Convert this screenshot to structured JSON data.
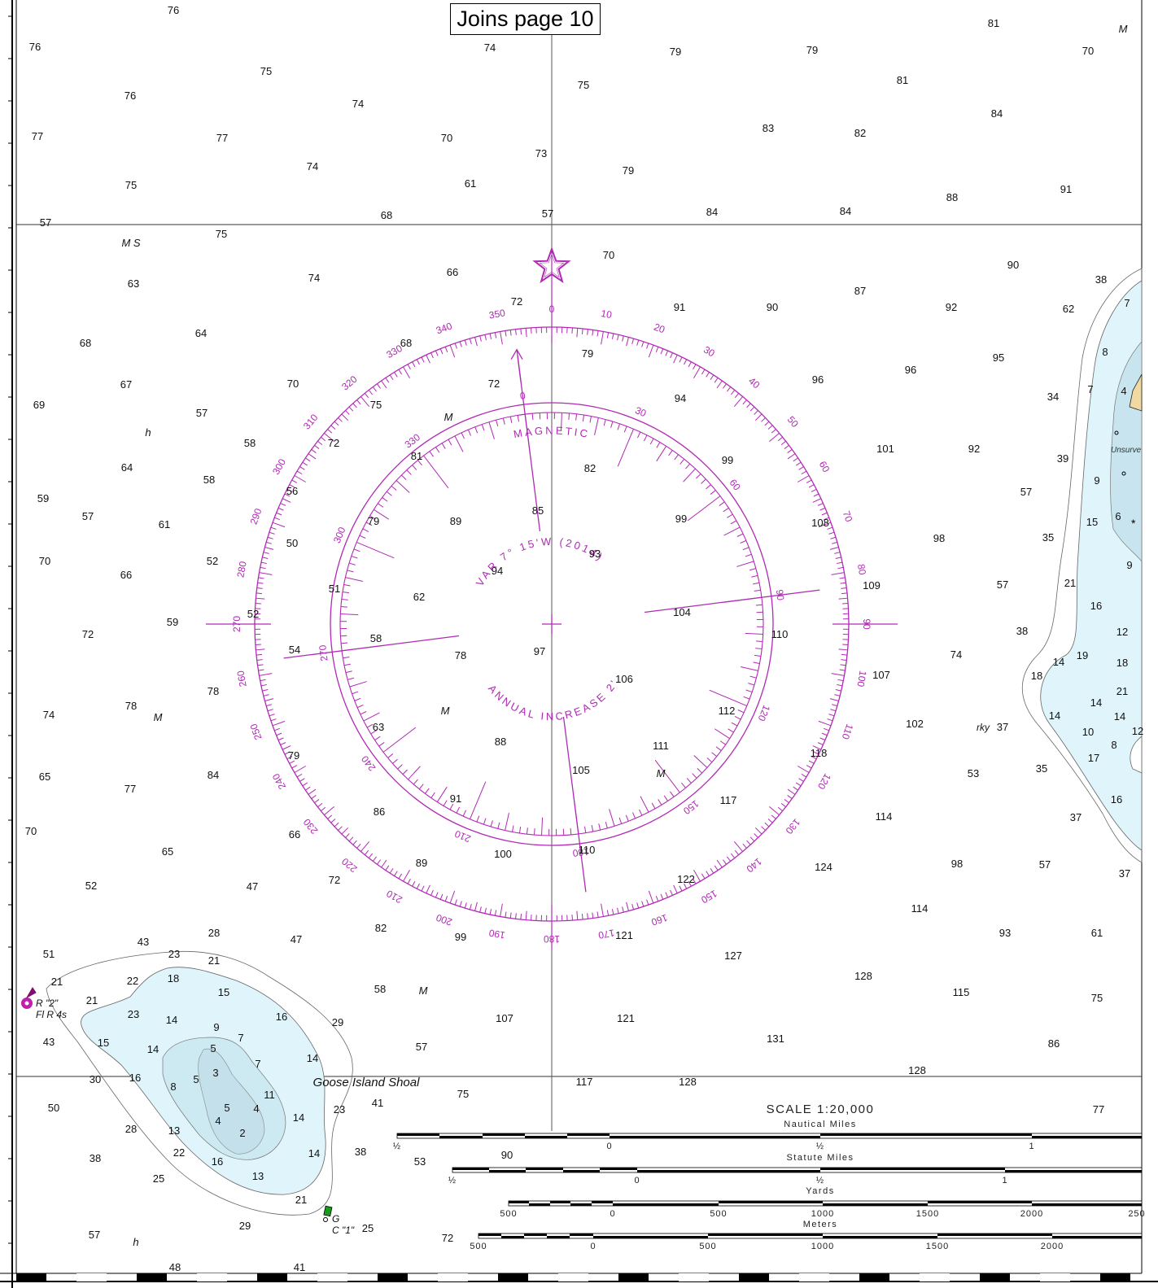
{
  "header": {
    "joins_label": "Joins page 10"
  },
  "chart_info": {
    "shoal_name": "Goose Island Shoal",
    "scale_title": "SCALE  1:20,000",
    "unsurveyed_note": "Unsurve",
    "rocky_note": "rky",
    "buoy_red": {
      "name": "R \"2\"",
      "light": "Fl R 4s"
    },
    "buoy_green": {
      "name": "G",
      "name2": "C \"1\""
    }
  },
  "compass_rose": {
    "variation_text": "VAR 7° 15'W (2014)",
    "annual_text": "ANNUAL INCREASE 2'",
    "magnetic_label": "MAGNETIC",
    "true_labels": [
      "0",
      "10",
      "20",
      "30",
      "40",
      "50",
      "60",
      "70",
      "80",
      "90",
      "100",
      "110",
      "120",
      "130",
      "140",
      "150",
      "160",
      "170",
      "180",
      "190",
      "200",
      "210",
      "220",
      "230",
      "240",
      "250",
      "260",
      "270",
      "280",
      "290",
      "300",
      "310",
      "320",
      "330",
      "340",
      "350"
    ],
    "magnetic_labels": [
      {
        "bearing": "0",
        "true_angle": 352.75
      },
      {
        "bearing": "30",
        "true_angle": 22.75
      },
      {
        "bearing": "60",
        "true_angle": 52.75
      },
      {
        "bearing": "90",
        "true_angle": 82.75
      },
      {
        "bearing": "120",
        "true_angle": 112.75
      },
      {
        "bearing": "150",
        "true_angle": 142.75
      },
      {
        "bearing": "180",
        "true_angle": 172.75
      },
      {
        "bearing": "210",
        "true_angle": 202.75
      },
      {
        "bearing": "240",
        "true_angle": 232.75
      },
      {
        "bearing": "270",
        "true_angle": 262.75
      },
      {
        "bearing": "300",
        "true_angle": 292.75
      },
      {
        "bearing": "330",
        "true_angle": 322.75
      }
    ]
  },
  "scale_bars": {
    "nautical": {
      "title": "Nautical Miles",
      "labels": [
        "½",
        "0",
        "½",
        "1"
      ]
    },
    "statute": {
      "title": "Statute  Miles",
      "labels": [
        "½",
        "0",
        "½",
        "1"
      ]
    },
    "yards": {
      "title": "Yards",
      "labels": [
        "500",
        "0",
        "500",
        "1000",
        "1500",
        "2000",
        "250"
      ]
    },
    "meters": {
      "title": "Meters",
      "labels": [
        "500",
        "0",
        "500",
        "1000",
        "1500",
        "2000"
      ]
    }
  },
  "soundings": [
    [
      "76",
      213,
      13
    ],
    [
      "76",
      43,
      58
    ],
    [
      "74",
      602,
      59
    ],
    [
      "79",
      830,
      64
    ],
    [
      "79",
      998,
      62
    ],
    [
      "81",
      1221,
      29
    ],
    [
      "70",
      1337,
      63
    ],
    [
      "81",
      1109,
      99
    ],
    [
      "75",
      327,
      88
    ],
    [
      "76",
      160,
      118
    ],
    [
      "74",
      440,
      128
    ],
    [
      "75",
      717,
      105
    ],
    [
      "84",
      1225,
      140
    ],
    [
      "83",
      944,
      158
    ],
    [
      "82",
      1057,
      164
    ],
    [
      "77",
      46,
      168
    ],
    [
      "77",
      273,
      170
    ],
    [
      "70",
      549,
      170
    ],
    [
      "73",
      665,
      189
    ],
    [
      "74",
      384,
      205
    ],
    [
      "79",
      772,
      210
    ],
    [
      "75",
      161,
      228
    ],
    [
      "61",
      578,
      226
    ],
    [
      "88",
      1170,
      243
    ],
    [
      "91",
      1310,
      233
    ],
    [
      "68",
      475,
      265
    ],
    [
      "57",
      673,
      263
    ],
    [
      "84",
      875,
      261
    ],
    [
      "84",
      1039,
      260
    ],
    [
      "75",
      272,
      288
    ],
    [
      "70",
      748,
      314
    ],
    [
      "66",
      556,
      335
    ],
    [
      "74",
      386,
      342
    ],
    [
      "63",
      164,
      349
    ],
    [
      "90",
      1245,
      326
    ],
    [
      "87",
      1057,
      358
    ],
    [
      "72",
      635,
      371
    ],
    [
      "91",
      835,
      378
    ],
    [
      "90",
      949,
      378
    ],
    [
      "92",
      1169,
      378
    ],
    [
      "62",
      1313,
      380
    ],
    [
      "38",
      1353,
      344
    ],
    [
      "64",
      247,
      410
    ],
    [
      "68",
      105,
      422
    ],
    [
      "68",
      499,
      422
    ],
    [
      "79",
      722,
      435
    ],
    [
      "95",
      1227,
      440
    ],
    [
      "96",
      1119,
      455
    ],
    [
      "96",
      1005,
      467
    ],
    [
      "67",
      155,
      473
    ],
    [
      "70",
      360,
      472
    ],
    [
      "72",
      607,
      472
    ],
    [
      "94",
      836,
      490
    ],
    [
      "34",
      1294,
      488
    ],
    [
      "69",
      48,
      498
    ],
    [
      "75",
      462,
      498
    ],
    [
      "57",
      248,
      508
    ],
    [
      "58",
      307,
      545
    ],
    [
      "72",
      410,
      545
    ],
    [
      "101",
      1088,
      552
    ],
    [
      "92",
      1197,
      552
    ],
    [
      "81",
      512,
      561
    ],
    [
      "99",
      894,
      566
    ],
    [
      "39",
      1306,
      564
    ],
    [
      "64",
      156,
      575
    ],
    [
      "82",
      725,
      576
    ],
    [
      "58",
      257,
      590
    ],
    [
      "56",
      359,
      604
    ],
    [
      "57",
      1261,
      605
    ],
    [
      "59",
      53,
      613
    ],
    [
      "57",
      108,
      635
    ],
    [
      "61",
      202,
      645
    ],
    [
      "79",
      459,
      641
    ],
    [
      "89",
      560,
      641
    ],
    [
      "85",
      661,
      628
    ],
    [
      "99",
      837,
      638
    ],
    [
      "108",
      1008,
      643
    ],
    [
      "98",
      1154,
      662
    ],
    [
      "35",
      1288,
      661
    ],
    [
      "70",
      55,
      690
    ],
    [
      "66",
      155,
      707
    ],
    [
      "52",
      261,
      690
    ],
    [
      "50",
      359,
      668
    ],
    [
      "93",
      731,
      681
    ],
    [
      "94",
      611,
      702
    ],
    [
      "109",
      1071,
      720
    ],
    [
      "57",
      1232,
      719
    ],
    [
      "51",
      411,
      724
    ],
    [
      "62",
      515,
      734
    ],
    [
      "52",
      311,
      755
    ],
    [
      "104",
      838,
      753
    ],
    [
      "59",
      212,
      765
    ],
    [
      "72",
      108,
      780
    ],
    [
      "54",
      362,
      799
    ],
    [
      "58",
      462,
      785
    ],
    [
      "97",
      663,
      801
    ],
    [
      "110",
      958,
      780
    ],
    [
      "38",
      1256,
      776
    ],
    [
      "78",
      566,
      806
    ],
    [
      "106",
      767,
      835
    ],
    [
      "107",
      1083,
      830
    ],
    [
      "74",
      1175,
      805
    ],
    [
      "78",
      262,
      850
    ],
    [
      "78",
      161,
      868
    ],
    [
      "74",
      60,
      879
    ],
    [
      "112",
      893,
      874
    ],
    [
      "102",
      1124,
      890
    ],
    [
      "37",
      1232,
      894
    ],
    [
      "63",
      465,
      894
    ],
    [
      "88",
      615,
      912
    ],
    [
      "111",
      812,
      917
    ],
    [
      "118",
      1006,
      926
    ],
    [
      "79",
      361,
      929
    ],
    [
      "84",
      262,
      953
    ],
    [
      "65",
      55,
      955
    ],
    [
      "105",
      714,
      947
    ],
    [
      "53",
      1196,
      951
    ],
    [
      "35",
      1280,
      945
    ],
    [
      "77",
      160,
      970
    ],
    [
      "117",
      895,
      984
    ],
    [
      "86",
      466,
      998
    ],
    [
      "114",
      1086,
      1004
    ],
    [
      "70",
      38,
      1022
    ],
    [
      "66",
      362,
      1026
    ],
    [
      "37",
      1322,
      1005
    ],
    [
      "65",
      206,
      1047
    ],
    [
      "91",
      560,
      982
    ],
    [
      "124",
      1012,
      1066
    ],
    [
      "100",
      618,
      1050
    ],
    [
      "110",
      721,
      1045
    ],
    [
      "98",
      1176,
      1062
    ],
    [
      "57",
      1284,
      1063
    ],
    [
      "37",
      1382,
      1074
    ],
    [
      "52",
      112,
      1089
    ],
    [
      "47",
      310,
      1090
    ],
    [
      "72",
      411,
      1082
    ],
    [
      "89",
      518,
      1061
    ],
    [
      "122",
      843,
      1081
    ],
    [
      "114",
      1130,
      1117
    ],
    [
      "28",
      263,
      1147
    ],
    [
      "43",
      176,
      1158
    ],
    [
      "47",
      364,
      1155
    ],
    [
      "82",
      468,
      1141
    ],
    [
      "99",
      566,
      1152
    ],
    [
      "121",
      767,
      1150
    ],
    [
      "93",
      1235,
      1147
    ],
    [
      "61",
      1348,
      1147
    ],
    [
      "51",
      60,
      1173
    ],
    [
      "23",
      214,
      1173
    ],
    [
      "21",
      263,
      1181
    ],
    [
      "127",
      901,
      1175
    ],
    [
      "22",
      163,
      1206
    ],
    [
      "18",
      213,
      1203
    ],
    [
      "21",
      70,
      1207
    ],
    [
      "128",
      1061,
      1200
    ],
    [
      "58",
      467,
      1216
    ],
    [
      "15",
      275,
      1220
    ],
    [
      "115",
      1181,
      1220
    ],
    [
      "75",
      1348,
      1227
    ],
    [
      "21",
      113,
      1230
    ],
    [
      "16",
      346,
      1250
    ],
    [
      "23",
      164,
      1247
    ],
    [
      "14",
      211,
      1254
    ],
    [
      "29",
      415,
      1257
    ],
    [
      "107",
      620,
      1252
    ],
    [
      "121",
      769,
      1252
    ],
    [
      "9",
      266,
      1263
    ],
    [
      "7",
      296,
      1276
    ],
    [
      "43",
      60,
      1281
    ],
    [
      "15",
      127,
      1282
    ],
    [
      "14",
      188,
      1290
    ],
    [
      "5",
      262,
      1289
    ],
    [
      "57",
      518,
      1287
    ],
    [
      "131",
      953,
      1277
    ],
    [
      "86",
      1295,
      1283
    ],
    [
      "14",
      384,
      1301
    ],
    [
      "7",
      317,
      1308
    ],
    [
      "3",
      265,
      1319
    ],
    [
      "30",
      117,
      1327
    ],
    [
      "16",
      166,
      1325
    ],
    [
      "5",
      241,
      1327
    ],
    [
      "8",
      213,
      1336
    ],
    [
      "117",
      718,
      1330
    ],
    [
      "128",
      845,
      1330
    ],
    [
      "11",
      331,
      1346
    ],
    [
      "41",
      464,
      1356
    ],
    [
      "50",
      66,
      1362
    ],
    [
      "5",
      279,
      1362
    ],
    [
      "4",
      315,
      1363
    ],
    [
      "23",
      417,
      1364
    ],
    [
      "4",
      268,
      1378
    ],
    [
      "14",
      367,
      1374
    ],
    [
      "75",
      569,
      1345
    ],
    [
      "28",
      161,
      1388
    ],
    [
      "13",
      214,
      1390
    ],
    [
      "2",
      298,
      1393
    ],
    [
      "77",
      1350,
      1364
    ],
    [
      "14",
      386,
      1418
    ],
    [
      "38",
      443,
      1416
    ],
    [
      "22",
      220,
      1417
    ],
    [
      "38",
      117,
      1424
    ],
    [
      "16",
      267,
      1428
    ],
    [
      "90",
      623,
      1420
    ],
    [
      "53",
      516,
      1428
    ],
    [
      "13",
      317,
      1446
    ],
    [
      "25",
      195,
      1449
    ],
    [
      "21",
      370,
      1475
    ],
    [
      "29",
      301,
      1507
    ],
    [
      "25",
      452,
      1510
    ],
    [
      "57",
      116,
      1518
    ],
    [
      "72",
      550,
      1522
    ],
    [
      "48",
      215,
      1558
    ],
    [
      "41",
      368,
      1558
    ],
    [
      "7",
      1385,
      373
    ],
    [
      "8",
      1358,
      433
    ],
    [
      "7",
      1340,
      479
    ],
    [
      "4",
      1381,
      481
    ],
    [
      "9",
      1348,
      591
    ],
    [
      "6",
      1374,
      635
    ],
    [
      "15",
      1342,
      642
    ],
    [
      "9",
      1388,
      695
    ],
    [
      "21",
      1315,
      717
    ],
    [
      "16",
      1347,
      745
    ],
    [
      "12",
      1379,
      777
    ],
    [
      "14",
      1301,
      814
    ],
    [
      "19",
      1330,
      806
    ],
    [
      "18",
      1274,
      831
    ],
    [
      "18",
      1379,
      815
    ],
    [
      "21",
      1379,
      850
    ],
    [
      "14",
      1347,
      864
    ],
    [
      "14",
      1296,
      880
    ],
    [
      "14",
      1376,
      881
    ],
    [
      "10",
      1337,
      900
    ],
    [
      "8",
      1369,
      916
    ],
    [
      "12",
      1398,
      899
    ],
    [
      "17",
      1344,
      932
    ],
    [
      "16",
      1372,
      983
    ],
    [
      "128",
      1127,
      1316
    ],
    [
      "57",
      56,
      274
    ]
  ],
  "soundings_italic": [
    [
      "M",
      1380,
      36
    ],
    [
      "M S",
      161,
      299
    ],
    [
      "h",
      182,
      532
    ],
    [
      "M",
      551,
      513
    ],
    [
      "M",
      547,
      874
    ],
    [
      "M",
      194,
      882
    ],
    [
      "M",
      812,
      951
    ],
    [
      "M",
      520,
      1218
    ],
    [
      "h",
      167,
      1527
    ]
  ]
}
